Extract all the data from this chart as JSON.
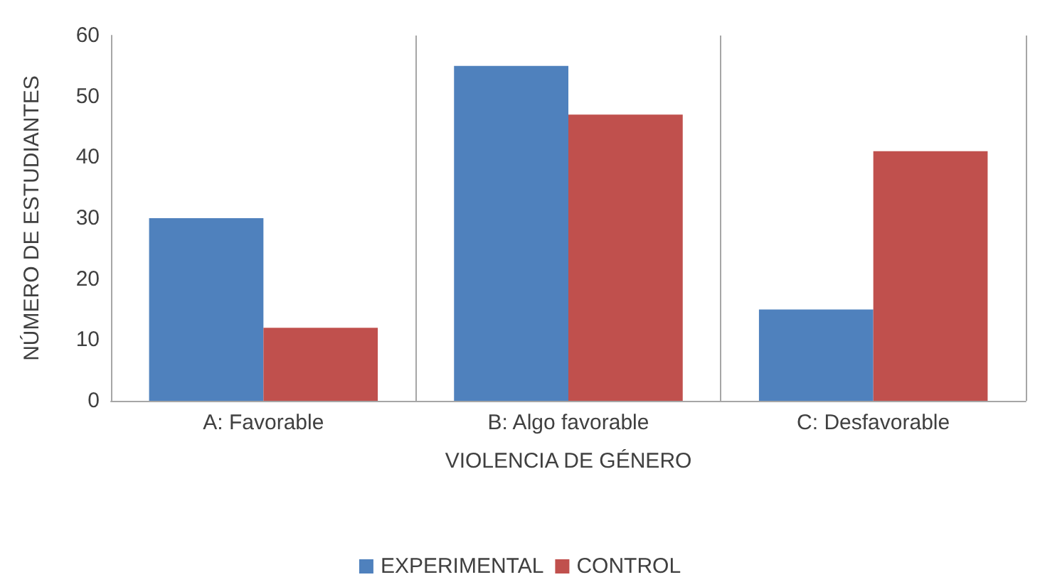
{
  "chart_data": {
    "type": "bar",
    "xlabel": "VIOLENCIA DE GÉNERO",
    "ylabel": "NÚMERO DE ESTUDIANTES",
    "categories": [
      "A: Favorable",
      "B: Algo favorable",
      "C: Desfavorable"
    ],
    "series": [
      {
        "name": "EXPERIMENTAL",
        "color": "#4f81bd",
        "values": [
          30,
          55,
          15
        ]
      },
      {
        "name": "CONTROL",
        "color": "#c0504d",
        "values": [
          12,
          47,
          41
        ]
      }
    ],
    "ylim": [
      0,
      60
    ],
    "yticks": [
      0,
      10,
      20,
      30,
      40,
      50,
      60
    ],
    "grid": "x",
    "legend": "bottom"
  }
}
